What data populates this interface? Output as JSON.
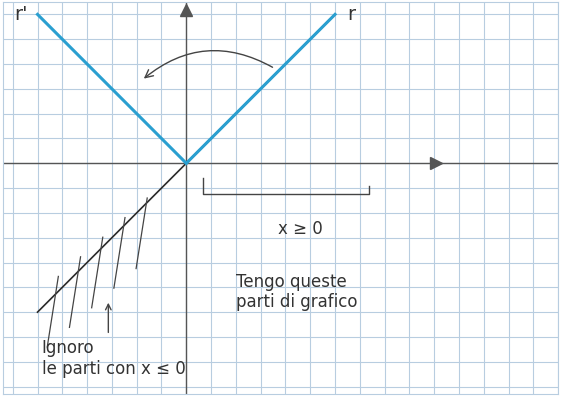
{
  "chart_data": {
    "type": "line",
    "series": [
      {
        "name": "r",
        "color": "#2a2a2a",
        "x": [
          -6,
          6
        ],
        "values": [
          -6,
          6
        ]
      },
      {
        "color": "#2a9fd0",
        "x": [
          0,
          6
        ],
        "values": [
          0,
          6
        ]
      },
      {
        "name": "r'",
        "color": "#2a9fd0",
        "x": [
          -6,
          0
        ],
        "values": [
          6,
          0
        ]
      }
    ],
    "annotations": [
      "x ≥ 0",
      "Tengo queste\nparti di grafico",
      "Ignoro\nle parti con x ≤ 0"
    ],
    "xlim": [
      -7.4,
      15
    ],
    "ylim": [
      -9.3,
      6.5
    ],
    "xticks": [
      -7,
      -6,
      -5,
      -4,
      -3,
      -2,
      -1,
      0,
      1,
      2,
      3,
      4,
      5,
      6,
      7,
      8,
      9,
      10,
      11,
      12,
      13,
      14,
      15
    ],
    "yticks": [
      -9,
      -8,
      -7,
      -6,
      -5,
      -4,
      -3,
      -2,
      -1,
      0,
      1,
      2,
      3,
      4,
      5,
      6
    ],
    "grid": true,
    "tick_labels": false
  }
}
